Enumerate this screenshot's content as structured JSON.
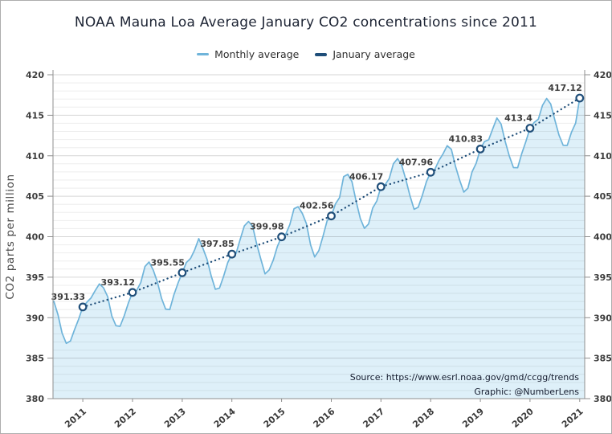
{
  "title": "NOAA Mauna Loa Average January CO2 concentrations since 2011",
  "legend": {
    "items": [
      {
        "label": "Monthly average"
      },
      {
        "label": "January average"
      }
    ]
  },
  "source": {
    "line1": "Source: https://www.esrl.noaa.gov/gmd/ccgg/trends",
    "line2": "Graphic: @NumberLens"
  },
  "colors": {
    "monthly_line": "#6fb4da",
    "monthly_fill": "#def0f9",
    "january": "#1f4e79",
    "axis": "#8f8f8f",
    "tick_label": "#3c3c3c",
    "data_label": "#3c3c3c",
    "y_axis_title": "#4a4a4a",
    "title_text": "#1c2333",
    "source_text": "#141b2e"
  },
  "chart_data": {
    "type": "line",
    "title": "NOAA Mauna Loa Average January CO2 concentrations since 2011",
    "xlabel": "",
    "ylabel": "CO2 parts per million",
    "ylim": [
      380,
      420
    ],
    "xlim": [
      2010.4,
      2021.1
    ],
    "y_ticks": [
      380,
      385,
      390,
      395,
      400,
      405,
      410,
      415,
      420
    ],
    "y_minor_step": 1,
    "x_ticks": [
      2011,
      2012,
      2013,
      2014,
      2015,
      2016,
      2017,
      2018,
      2019,
      2020,
      2021
    ],
    "grid": "horizontal major+minor, no vertical gridlines",
    "legend_position": "top-center",
    "series": [
      {
        "name": "Monthly average",
        "type": "area-line",
        "start": "2010-06",
        "values": [
          392.04,
          390.36,
          388.1,
          386.83,
          387.12,
          388.52,
          389.84,
          391.33,
          391.92,
          392.45,
          393.36,
          394.16,
          393.69,
          392.59,
          390.21,
          389.0,
          388.93,
          390.24,
          391.8,
          393.12,
          393.35,
          394.34,
          396.32,
          396.87,
          395.88,
          394.42,
          392.41,
          391.06,
          391.01,
          392.81,
          394.28,
          395.55,
          396.8,
          397.31,
          398.35,
          399.76,
          398.58,
          397.2,
          395.15,
          393.51,
          393.66,
          395.11,
          396.81,
          397.85,
          397.93,
          399.65,
          401.33,
          401.88,
          401.31,
          399.07,
          397.21,
          395.4,
          395.89,
          397.12,
          398.81,
          399.98,
          400.31,
          401.51,
          403.45,
          403.7,
          402.88,
          401.61,
          399.0,
          397.5,
          398.28,
          400.07,
          401.98,
          402.56,
          404.04,
          404.83,
          407.42,
          407.7,
          406.81,
          404.39,
          402.25,
          401.03,
          401.57,
          403.53,
          404.42,
          406.17,
          406.42,
          407.18,
          409.0,
          409.65,
          408.84,
          407.07,
          405.07,
          403.38,
          403.63,
          405.12,
          406.81,
          407.96,
          408.32,
          409.41,
          410.24,
          411.24,
          410.79,
          408.71,
          406.99,
          405.51,
          406.0,
          408.02,
          409.07,
          410.83,
          411.75,
          411.97,
          413.32,
          414.66,
          413.92,
          411.77,
          409.95,
          408.54,
          408.52,
          410.25,
          411.76,
          413.4,
          414.11,
          414.51,
          416.21,
          417.07,
          416.39,
          414.38,
          412.55,
          411.29,
          411.28,
          412.89,
          414.02,
          417.12
        ]
      },
      {
        "name": "January average",
        "type": "dotted-line-open-markers",
        "x": [
          2011,
          2012,
          2013,
          2014,
          2015,
          2016,
          2017,
          2018,
          2019,
          2020,
          2021
        ],
        "values": [
          391.33,
          393.12,
          395.55,
          397.85,
          399.98,
          402.56,
          406.17,
          407.96,
          410.83,
          413.4,
          417.12
        ],
        "labels": [
          "391.33",
          "393.12",
          "395.55",
          "397.85",
          "399.98",
          "402.56",
          "406.17",
          "407.96",
          "410.83",
          "413.4",
          "417.12"
        ]
      }
    ]
  }
}
